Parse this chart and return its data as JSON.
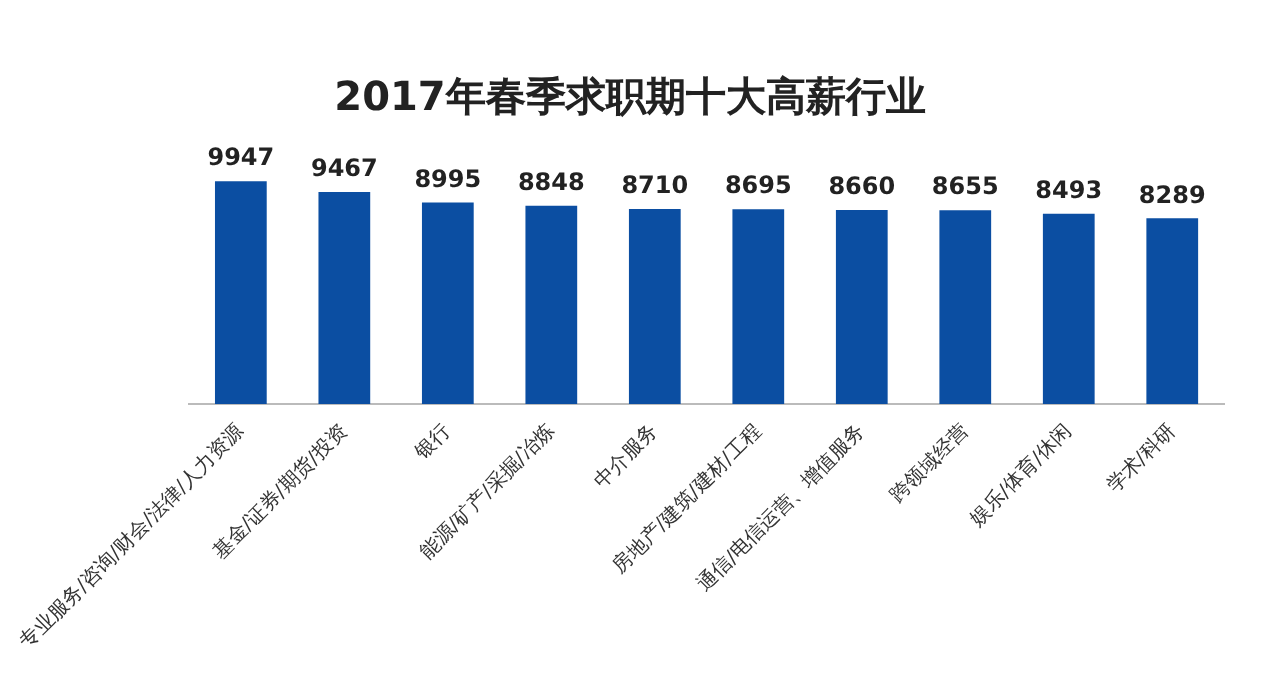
{
  "chart_data": {
    "type": "bar",
    "title": "2017年春季求职期十大高薪行业",
    "categories": [
      "专业服务/咨询/财会/法律/人力资源",
      "基金/证券/期货/投资",
      "银行",
      "能源/矿产/采掘/冶炼",
      "中介服务",
      "房地产/建筑/建材/工程",
      "通信/电信运营、增值服务",
      "跨领域经营",
      "娱乐/体育/休闲",
      "学术/科研"
    ],
    "values": [
      9947,
      9467,
      8995,
      8848,
      8710,
      8695,
      8660,
      8655,
      8493,
      8289
    ],
    "color": "#0b4ea2",
    "data_labels": true,
    "grid": false,
    "legend": false,
    "tick_labels": "x"
  }
}
